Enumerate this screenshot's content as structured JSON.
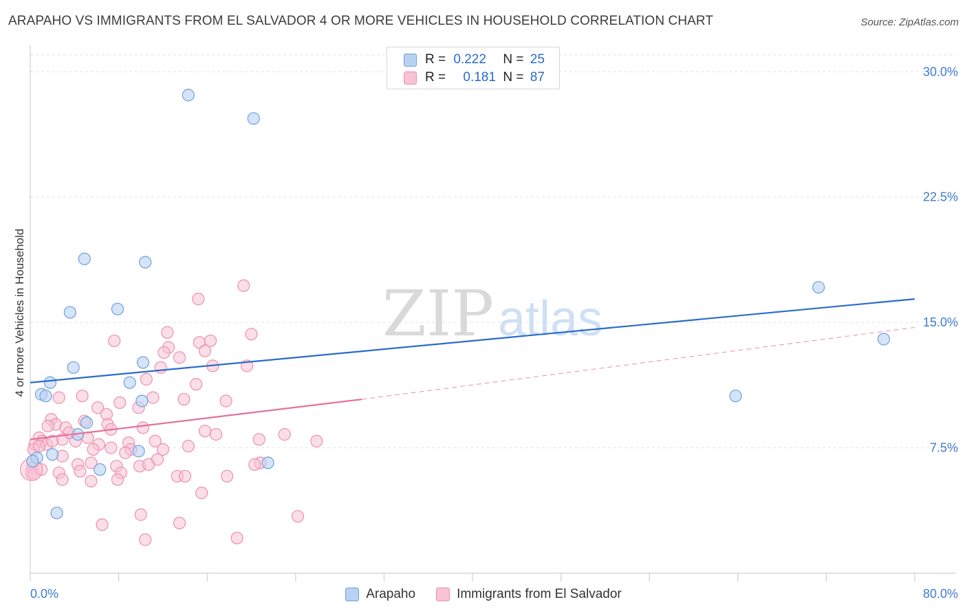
{
  "title": "ARAPAHO VS IMMIGRANTS FROM EL SALVADOR 4 OR MORE VEHICLES IN HOUSEHOLD CORRELATION CHART",
  "source": "Source: ZipAtlas.com",
  "watermark": {
    "zip": "ZIP",
    "atlas": "atlas"
  },
  "colors": {
    "arapaho_fill": "#b9d2f3",
    "arapaho_stroke": "#6e9fdb",
    "arapaho_line": "#2a6bc8",
    "salvador_fill": "#f8c3d3",
    "salvador_stroke": "#ec8fae",
    "salvador_line": "#e4709a",
    "axis_text": "#3f7cd0",
    "grid": "#e2e2e2"
  },
  "stats": {
    "r_label": "R =",
    "n_label": "N =",
    "arapaho": {
      "r": "0.222",
      "n": "25"
    },
    "salvador": {
      "r": "0.181",
      "n": "87"
    }
  },
  "legend": {
    "arapaho": "Arapaho",
    "salvador": "Immigrants from El Salvador"
  },
  "chart_data": {
    "type": "scatter",
    "title": "ARAPAHO VS IMMIGRANTS FROM EL SALVADOR 4 OR MORE VEHICLES IN HOUSEHOLD CORRELATION CHART",
    "xlabel": "",
    "ylabel": "4 or more Vehicles in Household",
    "xlim": [
      0,
      80
    ],
    "ylim": [
      0,
      31
    ],
    "x_tick_labels": [
      "0.0%",
      "80.0%"
    ],
    "y_ticks": [
      7.5,
      15.0,
      22.5,
      30.0
    ],
    "y_tick_labels": [
      "7.5%",
      "15.0%",
      "22.5%",
      "30.0%"
    ],
    "series": [
      {
        "name": "Arapaho",
        "points": [
          [
            14.3,
            28.6
          ],
          [
            20.2,
            27.2
          ],
          [
            4.9,
            18.8
          ],
          [
            10.4,
            18.6
          ],
          [
            7.9,
            15.8
          ],
          [
            3.6,
            15.6
          ],
          [
            10.2,
            12.6
          ],
          [
            3.9,
            12.3
          ],
          [
            1.8,
            11.4
          ],
          [
            9.0,
            11.4
          ],
          [
            1.0,
            10.7
          ],
          [
            1.4,
            10.6
          ],
          [
            10.1,
            10.3
          ],
          [
            5.1,
            9.0
          ],
          [
            4.3,
            8.3
          ],
          [
            9.8,
            7.3
          ],
          [
            2.0,
            7.1
          ],
          [
            0.6,
            6.9
          ],
          [
            0.2,
            6.7
          ],
          [
            6.3,
            6.2
          ],
          [
            21.5,
            6.6
          ],
          [
            2.4,
            3.6
          ],
          [
            71.3,
            17.1
          ],
          [
            77.2,
            14.0
          ],
          [
            63.8,
            10.6
          ]
        ],
        "trend": {
          "x": [
            0,
            80
          ],
          "y": [
            11.4,
            16.4
          ]
        }
      },
      {
        "name": "Immigrants from El Salvador",
        "points": [
          [
            19.3,
            17.2
          ],
          [
            15.2,
            16.4
          ],
          [
            12.4,
            14.4
          ],
          [
            20.0,
            14.3
          ],
          [
            7.6,
            13.9
          ],
          [
            15.3,
            13.8
          ],
          [
            16.3,
            13.9
          ],
          [
            12.5,
            13.5
          ],
          [
            12.1,
            13.2
          ],
          [
            15.8,
            13.3
          ],
          [
            13.5,
            12.9
          ],
          [
            11.8,
            12.3
          ],
          [
            16.5,
            12.4
          ],
          [
            19.6,
            12.4
          ],
          [
            10.5,
            11.6
          ],
          [
            15.0,
            11.3
          ],
          [
            2.6,
            10.5
          ],
          [
            4.7,
            10.6
          ],
          [
            11.1,
            10.5
          ],
          [
            13.9,
            10.4
          ],
          [
            17.7,
            10.3
          ],
          [
            8.1,
            10.2
          ],
          [
            6.1,
            9.9
          ],
          [
            9.8,
            9.9
          ],
          [
            6.9,
            9.5
          ],
          [
            1.9,
            9.2
          ],
          [
            2.3,
            8.9
          ],
          [
            4.9,
            9.1
          ],
          [
            7.0,
            8.9
          ],
          [
            1.6,
            8.8
          ],
          [
            3.2,
            8.7
          ],
          [
            3.5,
            8.4
          ],
          [
            10.2,
            8.7
          ],
          [
            7.3,
            8.6
          ],
          [
            15.8,
            8.5
          ],
          [
            16.8,
            8.3
          ],
          [
            23.0,
            8.3
          ],
          [
            0.8,
            8.1
          ],
          [
            2.9,
            8.0
          ],
          [
            1.1,
            7.9
          ],
          [
            4.1,
            7.9
          ],
          [
            5.2,
            8.1
          ],
          [
            11.3,
            7.9
          ],
          [
            20.7,
            8.0
          ],
          [
            25.9,
            7.9
          ],
          [
            0.4,
            7.7
          ],
          [
            6.2,
            7.7
          ],
          [
            8.9,
            7.8
          ],
          [
            14.3,
            7.6
          ],
          [
            7.3,
            7.5
          ],
          [
            5.7,
            7.4
          ],
          [
            9.1,
            7.4
          ],
          [
            12.0,
            7.4
          ],
          [
            8.6,
            7.2
          ],
          [
            2.9,
            7.0
          ],
          [
            11.5,
            6.8
          ],
          [
            20.8,
            6.6
          ],
          [
            7.8,
            6.4
          ],
          [
            9.9,
            6.4
          ],
          [
            10.7,
            6.5
          ],
          [
            0.2,
            6.3
          ],
          [
            4.3,
            6.5
          ],
          [
            5.5,
            6.6
          ],
          [
            0.1,
            6.0
          ],
          [
            0.3,
            5.9
          ],
          [
            1.0,
            6.2
          ],
          [
            2.6,
            6.0
          ],
          [
            4.5,
            6.1
          ],
          [
            8.2,
            6.0
          ],
          [
            13.3,
            5.8
          ],
          [
            5.5,
            5.5
          ],
          [
            7.9,
            5.6
          ],
          [
            14.0,
            5.8
          ],
          [
            17.8,
            5.8
          ],
          [
            20.3,
            6.5
          ],
          [
            2.9,
            5.6
          ],
          [
            15.5,
            4.8
          ],
          [
            10.0,
            3.5
          ],
          [
            24.2,
            3.4
          ],
          [
            6.5,
            2.9
          ],
          [
            13.5,
            3.0
          ],
          [
            10.4,
            2.0
          ],
          [
            18.7,
            2.1
          ],
          [
            0.3,
            7.4
          ],
          [
            1.5,
            7.7
          ],
          [
            2.0,
            7.9
          ],
          [
            0.8,
            7.6
          ]
        ],
        "trend": {
          "x": [
            0,
            30
          ],
          "y": [
            8.0,
            10.4
          ]
        },
        "trend_extension": {
          "x": [
            30,
            80
          ],
          "y": [
            10.4,
            14.7
          ]
        }
      }
    ]
  }
}
